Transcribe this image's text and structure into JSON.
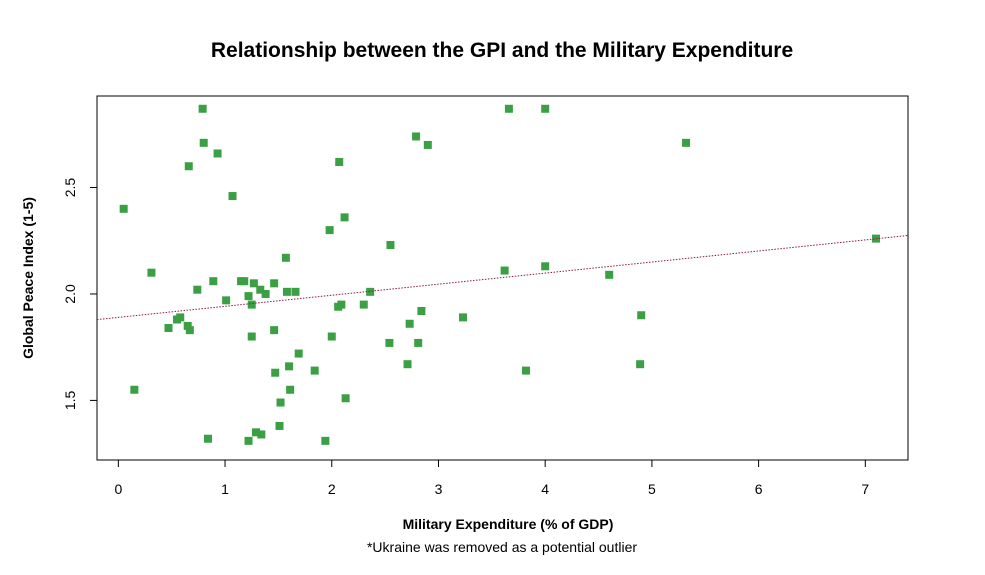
{
  "chart_data": {
    "type": "scatter",
    "title": "Relationship between the GPI and the Military Expenditure",
    "xlabel": "Military Expenditure (% of GDP)",
    "ylabel": "Global Peace Index (1-5)",
    "note": "*Ukraine was removed as a potential outlier",
    "xlim": [
      -0.2,
      7.4
    ],
    "ylim": [
      1.22,
      2.93
    ],
    "x_ticks": [
      0,
      1,
      2,
      3,
      4,
      5,
      6,
      7
    ],
    "y_ticks": [
      1.5,
      2.0,
      2.5
    ],
    "x_tick_labels": [
      "0",
      "1",
      "2",
      "3",
      "4",
      "5",
      "6",
      "7"
    ],
    "y_tick_labels": [
      "1.5",
      "2.0",
      "2.5"
    ],
    "grid": false,
    "point_color": "#3AA043",
    "trend_color": "#8B1A3A",
    "trendline": {
      "intercept": 1.89,
      "slope": 0.052
    },
    "points": [
      {
        "x": 0.05,
        "y": 2.4
      },
      {
        "x": 0.15,
        "y": 1.55
      },
      {
        "x": 0.31,
        "y": 2.1
      },
      {
        "x": 0.47,
        "y": 1.84
      },
      {
        "x": 0.55,
        "y": 1.88
      },
      {
        "x": 0.58,
        "y": 1.89
      },
      {
        "x": 0.65,
        "y": 1.85
      },
      {
        "x": 0.66,
        "y": 2.6
      },
      {
        "x": 0.67,
        "y": 1.83
      },
      {
        "x": 0.74,
        "y": 2.02
      },
      {
        "x": 0.79,
        "y": 2.87
      },
      {
        "x": 0.8,
        "y": 2.71
      },
      {
        "x": 0.84,
        "y": 1.32
      },
      {
        "x": 0.89,
        "y": 2.06
      },
      {
        "x": 0.93,
        "y": 2.66
      },
      {
        "x": 1.01,
        "y": 1.97
      },
      {
        "x": 1.07,
        "y": 2.46
      },
      {
        "x": 1.15,
        "y": 2.06
      },
      {
        "x": 1.18,
        "y": 2.06
      },
      {
        "x": 1.22,
        "y": 1.99
      },
      {
        "x": 1.22,
        "y": 1.31
      },
      {
        "x": 1.25,
        "y": 1.95
      },
      {
        "x": 1.25,
        "y": 1.8
      },
      {
        "x": 1.27,
        "y": 2.05
      },
      {
        "x": 1.29,
        "y": 1.35
      },
      {
        "x": 1.33,
        "y": 2.02
      },
      {
        "x": 1.34,
        "y": 1.34
      },
      {
        "x": 1.38,
        "y": 2.0
      },
      {
        "x": 1.46,
        "y": 2.05
      },
      {
        "x": 1.46,
        "y": 1.83
      },
      {
        "x": 1.47,
        "y": 1.63
      },
      {
        "x": 1.51,
        "y": 1.38
      },
      {
        "x": 1.52,
        "y": 1.49
      },
      {
        "x": 1.57,
        "y": 2.17
      },
      {
        "x": 1.58,
        "y": 2.01
      },
      {
        "x": 1.6,
        "y": 1.66
      },
      {
        "x": 1.61,
        "y": 1.55
      },
      {
        "x": 1.66,
        "y": 2.01
      },
      {
        "x": 1.69,
        "y": 1.72
      },
      {
        "x": 1.84,
        "y": 1.64
      },
      {
        "x": 1.94,
        "y": 1.31
      },
      {
        "x": 1.98,
        "y": 2.3
      },
      {
        "x": 2.0,
        "y": 1.8
      },
      {
        "x": 2.06,
        "y": 1.94
      },
      {
        "x": 2.07,
        "y": 2.62
      },
      {
        "x": 2.09,
        "y": 1.95
      },
      {
        "x": 2.12,
        "y": 2.36
      },
      {
        "x": 2.13,
        "y": 1.51
      },
      {
        "x": 2.3,
        "y": 1.95
      },
      {
        "x": 2.36,
        "y": 2.01
      },
      {
        "x": 2.54,
        "y": 1.77
      },
      {
        "x": 2.55,
        "y": 2.23
      },
      {
        "x": 2.71,
        "y": 1.67
      },
      {
        "x": 2.73,
        "y": 1.86
      },
      {
        "x": 2.79,
        "y": 2.74
      },
      {
        "x": 2.81,
        "y": 1.77
      },
      {
        "x": 2.84,
        "y": 1.92
      },
      {
        "x": 2.9,
        "y": 2.7
      },
      {
        "x": 3.23,
        "y": 1.89
      },
      {
        "x": 3.62,
        "y": 2.11
      },
      {
        "x": 3.66,
        "y": 2.87
      },
      {
        "x": 3.82,
        "y": 1.64
      },
      {
        "x": 4.0,
        "y": 2.87
      },
      {
        "x": 4.0,
        "y": 2.13
      },
      {
        "x": 4.6,
        "y": 2.09
      },
      {
        "x": 4.89,
        "y": 1.67
      },
      {
        "x": 4.9,
        "y": 1.9
      },
      {
        "x": 5.32,
        "y": 2.71
      },
      {
        "x": 7.1,
        "y": 2.26
      }
    ]
  }
}
